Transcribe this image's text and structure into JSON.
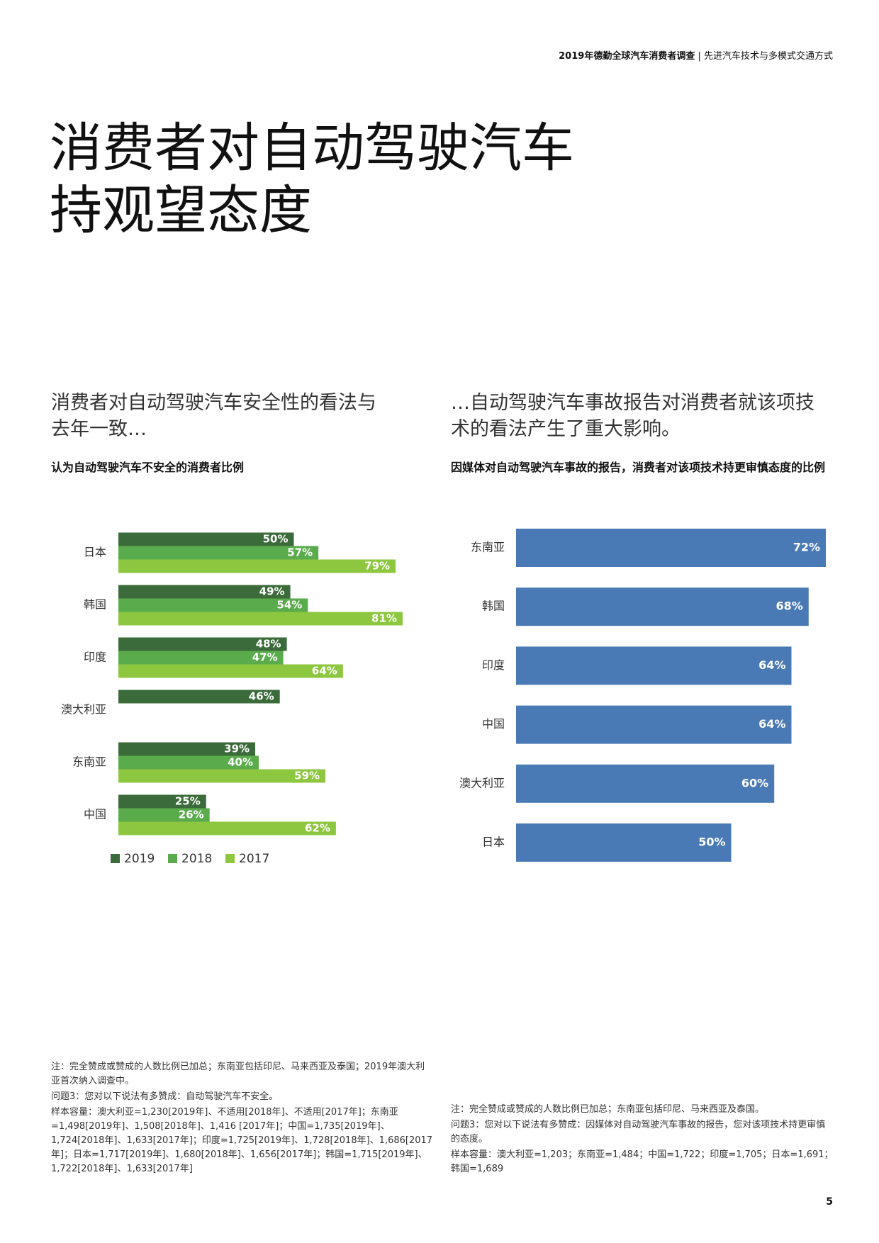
{
  "header": {
    "report": "2019年德勤全球汽车消费者调查",
    "section": "先进汽车技术与多模式交通方式"
  },
  "title": [
    "消费者对自动驾驶汽车",
    "持观望态度"
  ],
  "subtitles": [
    "消费者对自动驾驶汽车安全性的看法与去年一致…",
    "…自动驾驶汽车事故报告对消费者就该项技术的看法产生了重大影响。"
  ],
  "chart_data": [
    {
      "type": "bar",
      "horizontal": true,
      "title": "认为自动驾驶汽车不安全的消费者比例",
      "categories": [
        "日本",
        "韩国",
        "印度",
        "澳大利亚",
        "东南亚",
        "中国"
      ],
      "legend": "bottom",
      "series": [
        {
          "name": "2019",
          "color": "#3b6b3a",
          "values": [
            50,
            49,
            48,
            46,
            39,
            25
          ],
          "value_labels": [
            "50%",
            "49%",
            "48%",
            "46%",
            "39%",
            "25%"
          ]
        },
        {
          "name": "2018",
          "color": "#5aab4c",
          "values": [
            57,
            54,
            47,
            null,
            40,
            26
          ],
          "value_labels": [
            "57%",
            "54%",
            "47%",
            null,
            "40%",
            "26%"
          ]
        },
        {
          "name": "2017",
          "color": "#8dc63f",
          "values": [
            79,
            81,
            64,
            null,
            59,
            62
          ],
          "value_labels": [
            "79%",
            "81%",
            "64%",
            null,
            "59%",
            "62%"
          ]
        }
      ]
    },
    {
      "type": "bar",
      "horizontal": true,
      "title": "因媒体对自动驾驶汽车事故的报告，消费者对该项技术持更审慎态度的比例",
      "categories": [
        "东南亚",
        "韩国",
        "印度",
        "中国",
        "澳大利亚",
        "日本"
      ],
      "color": "#4a7ab5",
      "values": [
        72,
        68,
        64,
        64,
        60,
        50
      ],
      "value_labels": [
        "72%",
        "68%",
        "64%",
        "64%",
        "60%",
        "50%"
      ]
    }
  ],
  "notes": [
    [
      "注：完全赞成或赞成的人数比例已加总；东南亚包括印尼、马来西亚及泰国；2019年澳大利亚首次纳入调查中。",
      "问题3：您对以下说法有多赞成：自动驾驶汽车不安全。",
      "样本容量：澳大利亚=1,230[2019年]、不适用[2018年]、不适用[2017年]；东南亚=1,498[2019年]、1,508[2018年]、1,416 [2017年]；中国=1,735[2019年]、1,724[2018年]、1,633[2017年]；印度=1,725[2019年]、1,728[2018年]、1,686[2017年]；日本=1,717[2019年]、1,680[2018年]、1,656[2017年]；韩国=1,715[2019年]、1,722[2018年]、1,633[2017年]"
    ],
    [
      "注：完全赞成或赞成的人数比例已加总；东南亚包括印尼、马来西亚及泰国。",
      "问题3：您对以下说法有多赞成：因媒体对自动驾驶汽车事故的报告，您对该项技术持更审慎的态度。",
      "样本容量：澳大利亚=1,203；东南亚=1,484；中国=1,722；印度=1,705；日本=1,691；韩国=1,689"
    ]
  ],
  "page_number": "5"
}
